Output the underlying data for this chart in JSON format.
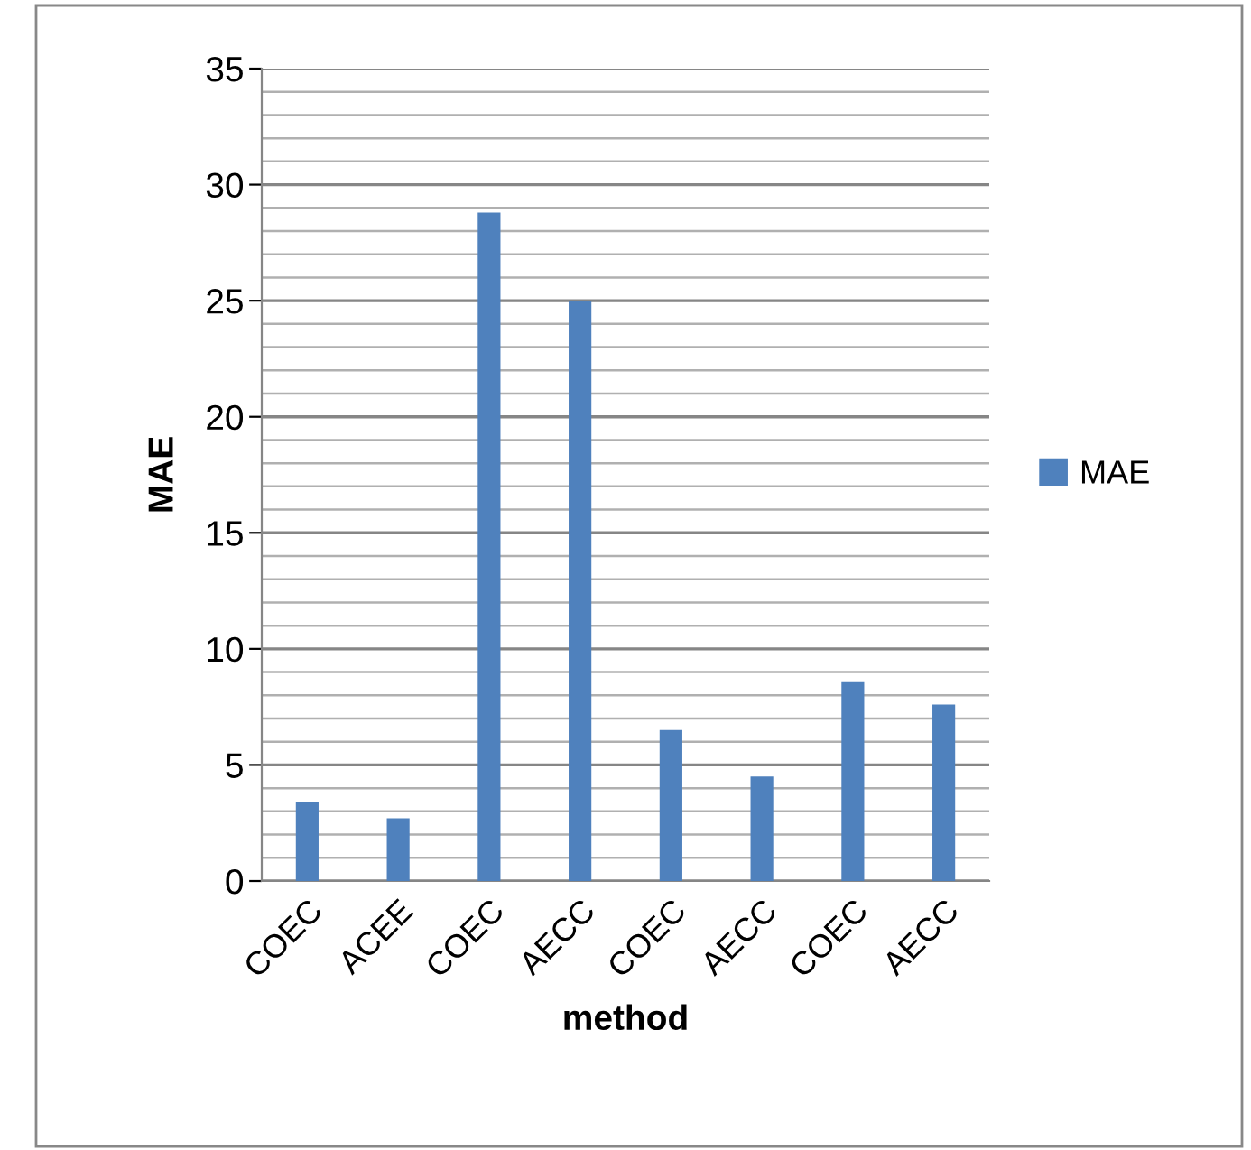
{
  "chart_data": {
    "type": "bar",
    "xlabel": "method",
    "ylabel": "MAE",
    "categories": [
      "COEC",
      "ACEE",
      "COEC",
      "AECC",
      "COEC",
      "AECC",
      "COEC",
      "AECC"
    ],
    "series": [
      {
        "name": "MAE",
        "color": "#4f81bd",
        "values": [
          3.4,
          2.7,
          28.8,
          25.0,
          6.5,
          4.5,
          8.6,
          7.6
        ]
      }
    ],
    "ylim": [
      0,
      35
    ],
    "yticks": [
      0,
      {
        "value": 1,
        "label": null
      },
      {
        "value": 2,
        "label": null
      },
      {
        "value": 3,
        "label": null
      },
      {
        "value": 4,
        "label": null
      },
      5,
      {
        "value": 6,
        "label": null
      },
      {
        "value": 7,
        "label": null
      },
      {
        "value": 8,
        "label": null
      },
      {
        "value": 9,
        "label": null
      },
      10,
      {
        "value": 11,
        "label": null
      },
      {
        "value": 12,
        "label": null
      },
      {
        "value": 13,
        "label": null
      },
      {
        "value": 14,
        "label": null
      },
      15,
      {
        "value": 16,
        "label": null
      },
      {
        "value": 17,
        "label": null
      },
      {
        "value": 18,
        "label": null
      },
      {
        "value": 19,
        "label": null
      },
      20,
      {
        "value": 21,
        "label": null
      },
      {
        "value": 22,
        "label": null
      },
      {
        "value": 23,
        "label": null
      },
      {
        "value": 24,
        "label": null
      },
      25,
      {
        "value": 26,
        "label": null
      },
      {
        "value": 27,
        "label": null
      },
      {
        "value": 28,
        "label": null
      },
      {
        "value": 29,
        "label": null
      },
      30,
      {
        "value": 31,
        "label": null
      },
      {
        "value": 32,
        "label": null
      },
      {
        "value": 33,
        "label": null
      },
      {
        "value": 34,
        "label": null
      },
      35
    ],
    "grid": "y",
    "legend": "right"
  }
}
